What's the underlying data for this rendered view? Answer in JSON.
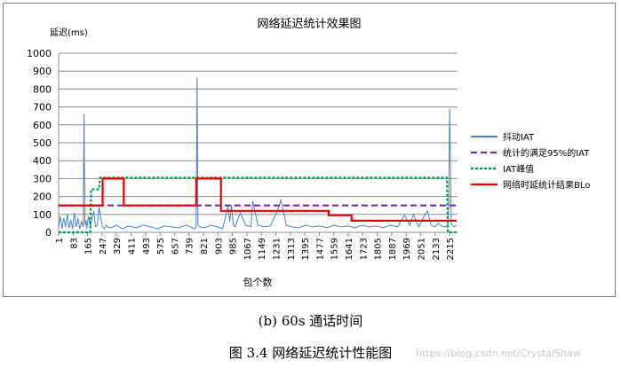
{
  "chart_data": {
    "type": "line",
    "title": "网络延迟统计效果图",
    "ylabel": "延迟(ms)",
    "xlabel": "包个数",
    "ylim": [
      0,
      1000
    ],
    "yticks": [
      0,
      100,
      200,
      300,
      400,
      500,
      600,
      700,
      800,
      900,
      1000
    ],
    "xlim": [
      1,
      2260
    ],
    "xticks": [
      1,
      83,
      165,
      247,
      329,
      411,
      493,
      575,
      657,
      739,
      821,
      903,
      985,
      1067,
      1149,
      1231,
      1313,
      1395,
      1477,
      1559,
      1641,
      1723,
      1805,
      1887,
      1969,
      2051,
      2133,
      2215
    ],
    "grid": "horizontal",
    "legend_position": "right",
    "series": [
      {
        "name": "抖动IAT",
        "style": "solid",
        "color": "#4f81bd",
        "x": [
          1,
          10,
          20,
          30,
          40,
          50,
          60,
          70,
          80,
          90,
          100,
          110,
          120,
          130,
          140,
          145,
          150,
          155,
          160,
          170,
          180,
          190,
          200,
          210,
          220,
          230,
          240,
          250,
          260,
          270,
          280,
          300,
          330,
          360,
          400,
          440,
          480,
          520,
          560,
          600,
          640,
          680,
          720,
          750,
          770,
          780,
          785,
          790,
          800,
          830,
          860,
          900,
          930,
          950,
          960,
          970,
          980,
          990,
          1000,
          1030,
          1060,
          1090,
          1100,
          1130,
          1160,
          1200,
          1240,
          1260,
          1290,
          1320,
          1360,
          1400,
          1440,
          1480,
          1520,
          1560,
          1600,
          1640,
          1680,
          1720,
          1760,
          1800,
          1840,
          1880,
          1920,
          1960,
          1990,
          2010,
          2040,
          2070,
          2090,
          2110,
          2130,
          2150,
          2170,
          2190,
          2205,
          2210,
          2215,
          2225,
          2240,
          2255
        ],
        "y": [
          30,
          90,
          20,
          80,
          30,
          100,
          25,
          70,
          20,
          110,
          30,
          80,
          20,
          60,
          30,
          660,
          40,
          70,
          20,
          90,
          30,
          80,
          120,
          30,
          40,
          140,
          80,
          30,
          20,
          40,
          30,
          25,
          40,
          20,
          35,
          25,
          40,
          30,
          20,
          35,
          30,
          25,
          40,
          30,
          20,
          30,
          865,
          40,
          30,
          25,
          40,
          30,
          20,
          100,
          150,
          60,
          150,
          40,
          30,
          110,
          40,
          30,
          175,
          40,
          30,
          35,
          120,
          180,
          40,
          30,
          25,
          40,
          30,
          35,
          25,
          40,
          30,
          35,
          25,
          40,
          30,
          35,
          25,
          40,
          30,
          95,
          40,
          100,
          30,
          90,
          120,
          40,
          30,
          50,
          35,
          30,
          40,
          140,
          690,
          50,
          30,
          40
        ]
      },
      {
        "name": "统计的满足95%的IAT",
        "style": "dashed",
        "color": "#7030a0",
        "x": [
          1,
          2250
        ],
        "y": [
          150,
          150
        ]
      },
      {
        "name": "IAT峰值",
        "style": "dotted",
        "color": "#00a050",
        "x": [
          1,
          180,
          185,
          230,
          235,
          2200,
          2205,
          2255
        ],
        "y": [
          0,
          0,
          240,
          240,
          305,
          305,
          0,
          0
        ]
      },
      {
        "name": "网络时延统计结果BLo",
        "style": "solid",
        "color": "#e00000",
        "x": [
          1,
          250,
          250,
          370,
          370,
          780,
          780,
          920,
          920,
          1530,
          1530,
          1660,
          1660,
          2255
        ],
        "y": [
          150,
          150,
          300,
          300,
          150,
          150,
          300,
          300,
          120,
          120,
          95,
          95,
          65,
          65
        ]
      }
    ]
  },
  "captions": {
    "sub": "(b) 60s 通话时间",
    "main": "图 3.4 网络延迟统计性能图"
  },
  "watermark": "https://blog.csdn.net/CrystalShaw"
}
